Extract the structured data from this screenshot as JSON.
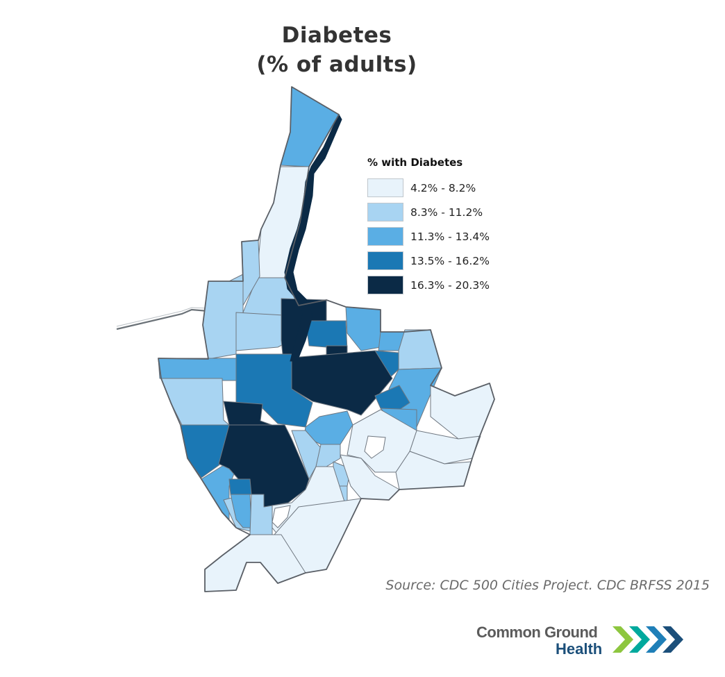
{
  "title": {
    "line1": "Diabetes",
    "line2": "(% of adults)"
  },
  "legend": {
    "title": "% with Diabetes",
    "classes": [
      {
        "label": "4.2% - 8.2%",
        "color": "#e8f3fb"
      },
      {
        "label": "8.3% - 11.2%",
        "color": "#a8d4f2"
      },
      {
        "label": "11.3% - 13.4%",
        "color": "#5aaee4"
      },
      {
        "label": "13.5% - 16.2%",
        "color": "#1b78b4"
      },
      {
        "label": "16.3% - 20.3%",
        "color": "#0b2a46"
      }
    ],
    "placement": "top-right"
  },
  "source": "Source: CDC 500 Cities Project. CDC BRFSS 2015",
  "logo": {
    "line1": "Common Ground",
    "line2": "Health",
    "colors": [
      "#8dc63f",
      "#00a99d",
      "#1f7fb8",
      "#1b4f7a"
    ]
  },
  "map": {
    "outline_color": "#5a5f66",
    "tract_border_color": "#6f7780",
    "river_color": "#0b2a46"
  }
}
